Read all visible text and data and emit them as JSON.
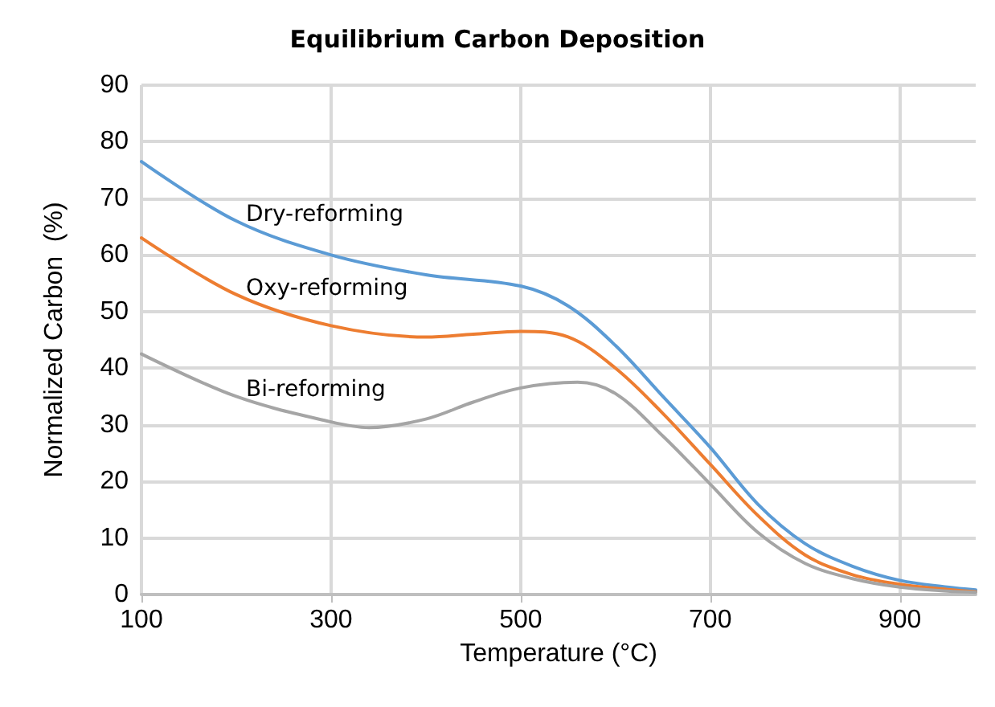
{
  "chart_data": {
    "type": "line",
    "title": "Equilibrium Carbon Deposition",
    "xlabel": "Temperature (°C)",
    "ylabel": "Normalized Carbon  (%)",
    "series": [
      {
        "name": "Dry-reforming",
        "color": "#5b9bd5",
        "x": [
          100,
          200,
          300,
          400,
          500,
          550,
          600,
          650,
          700,
          750,
          800,
          850,
          900,
          950,
          980
        ],
        "values": [
          76.5,
          66,
          60,
          56.5,
          54.5,
          51,
          44,
          35,
          26,
          16,
          9,
          5,
          2.5,
          1.3,
          0.8
        ]
      },
      {
        "name": "Oxy-reforming",
        "color": "#ed7d31",
        "x": [
          100,
          200,
          300,
          400,
          450,
          500,
          550,
          600,
          650,
          700,
          750,
          800,
          850,
          900,
          950,
          980
        ],
        "values": [
          63,
          53,
          47.5,
          45.5,
          46,
          46.5,
          45.5,
          40,
          32,
          23,
          14,
          7,
          3.5,
          1.8,
          0.9,
          0.5
        ]
      },
      {
        "name": "Bi-reforming",
        "color": "#a5a5a5",
        "x": [
          100,
          200,
          300,
          340,
          400,
          450,
          500,
          560,
          600,
          650,
          700,
          750,
          800,
          850,
          900,
          950,
          980
        ],
        "values": [
          42.5,
          35,
          30.5,
          29.5,
          31,
          34,
          36.5,
          37.5,
          35.5,
          28,
          19.5,
          11,
          5.5,
          2.8,
          1.3,
          0.6,
          0.4
        ]
      }
    ],
    "xlim": [
      100,
      980
    ],
    "xticks": [
      100,
      300,
      500,
      700,
      900
    ],
    "ylim": [
      0,
      90
    ],
    "yticks": [
      0,
      10,
      20,
      30,
      40,
      50,
      60,
      70,
      80,
      90
    ],
    "grid": true,
    "marker": "none",
    "line_style": "solid"
  }
}
